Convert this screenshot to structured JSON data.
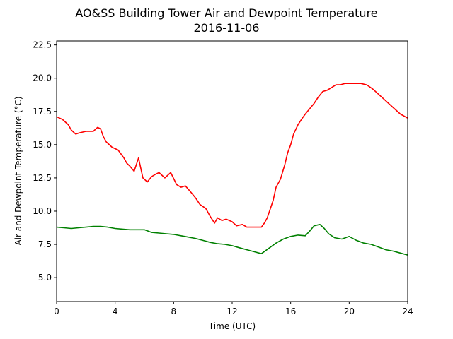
{
  "chart_data": {
    "type": "line",
    "title": "AO&SS Building Tower Air and Dewpoint Temperature",
    "subtitle": "2016-11-06",
    "xlabel": "Time (UTC)",
    "ylabel": "Air and Dewpoint Temperature (°C)",
    "xlim": [
      0,
      24
    ],
    "ylim": [
      3.2,
      22.8
    ],
    "xticks": [
      0,
      4,
      8,
      12,
      16,
      20,
      24
    ],
    "yticks": [
      5.0,
      7.5,
      10.0,
      12.5,
      15.0,
      17.5,
      20.0,
      22.5
    ],
    "ytick_labels": [
      "5.0",
      "7.5",
      "10.0",
      "12.5",
      "15.0",
      "17.5",
      "20.0",
      "22.5"
    ],
    "grid": false,
    "series": [
      {
        "color": "#ff0000",
        "x": [
          0.0,
          0.4,
          0.8,
          1.0,
          1.3,
          1.6,
          2.0,
          2.5,
          2.8,
          3.0,
          3.2,
          3.4,
          3.8,
          4.2,
          4.6,
          4.8,
          5.0,
          5.3,
          5.6,
          5.9,
          6.2,
          6.5,
          6.8,
          7.0,
          7.4,
          7.8,
          8.2,
          8.5,
          8.8,
          9.2,
          9.5,
          9.8,
          10.2,
          10.5,
          10.8,
          11.0,
          11.3,
          11.6,
          12.0,
          12.3,
          12.7,
          13.0,
          13.4,
          13.8,
          14.0,
          14.2,
          14.4,
          14.8,
          15.0,
          15.3,
          15.6,
          15.8,
          16.0,
          16.2,
          16.5,
          16.8,
          17.0,
          17.3,
          17.6,
          17.9,
          18.2,
          18.5,
          18.8,
          19.1,
          19.4,
          19.7,
          20.0,
          20.4,
          20.8,
          21.2,
          21.6,
          22.0,
          22.5,
          23.0,
          23.5,
          24.0
        ],
        "y": [
          17.1,
          16.9,
          16.5,
          16.1,
          15.8,
          15.9,
          16.0,
          16.0,
          16.3,
          16.2,
          15.6,
          15.2,
          14.8,
          14.6,
          14.0,
          13.6,
          13.4,
          13.0,
          14.0,
          12.5,
          12.2,
          12.6,
          12.8,
          12.9,
          12.5,
          12.9,
          12.0,
          11.8,
          11.9,
          11.4,
          11.0,
          10.5,
          10.2,
          9.6,
          9.1,
          9.5,
          9.3,
          9.4,
          9.2,
          8.9,
          9.0,
          8.8,
          8.8,
          8.8,
          8.8,
          9.1,
          9.5,
          10.8,
          11.8,
          12.4,
          13.5,
          14.4,
          15.0,
          15.8,
          16.5,
          17.0,
          17.3,
          17.7,
          18.1,
          18.6,
          19.0,
          19.1,
          19.3,
          19.5,
          19.5,
          19.6,
          19.6,
          19.6,
          19.6,
          19.5,
          19.2,
          18.8,
          18.3,
          17.8,
          17.3,
          17.0
        ]
      },
      {
        "color": "#008000",
        "x": [
          0.0,
          0.5,
          1.0,
          1.5,
          2.0,
          2.5,
          3.0,
          3.5,
          4.0,
          4.5,
          5.0,
          5.5,
          6.0,
          6.5,
          7.0,
          7.5,
          8.0,
          8.5,
          9.0,
          9.5,
          10.0,
          10.5,
          11.0,
          11.5,
          12.0,
          12.5,
          13.0,
          13.5,
          14.0,
          14.5,
          15.0,
          15.5,
          16.0,
          16.5,
          17.0,
          17.3,
          17.6,
          18.0,
          18.3,
          18.6,
          19.0,
          19.5,
          20.0,
          20.5,
          21.0,
          21.5,
          22.0,
          22.5,
          23.0,
          23.5,
          24.0
        ],
        "y": [
          8.8,
          8.75,
          8.7,
          8.75,
          8.8,
          8.85,
          8.85,
          8.8,
          8.7,
          8.65,
          8.6,
          8.6,
          8.6,
          8.4,
          8.35,
          8.3,
          8.25,
          8.15,
          8.05,
          7.95,
          7.8,
          7.65,
          7.55,
          7.5,
          7.4,
          7.25,
          7.1,
          6.95,
          6.8,
          7.2,
          7.6,
          7.9,
          8.1,
          8.2,
          8.15,
          8.5,
          8.9,
          9.0,
          8.7,
          8.3,
          8.0,
          7.9,
          8.1,
          7.8,
          7.6,
          7.5,
          7.3,
          7.1,
          7.0,
          6.85,
          6.7
        ]
      }
    ]
  }
}
